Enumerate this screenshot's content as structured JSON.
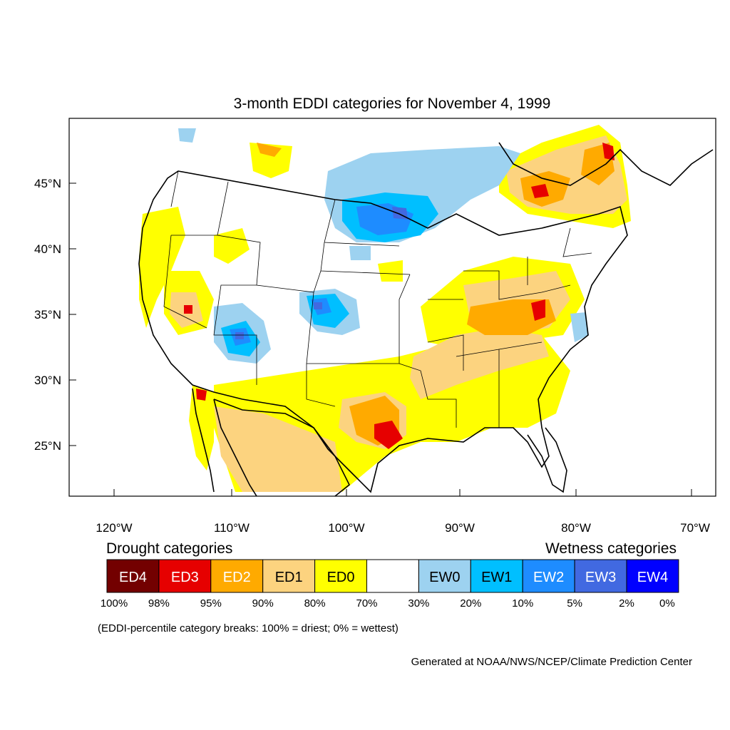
{
  "title": "3-month EDDI categories for November 4, 1999",
  "map": {
    "lat_labels": [
      "45°N",
      "40°N",
      "35°N",
      "30°N",
      "25°N"
    ],
    "lon_labels": [
      "120°W",
      "110°W",
      "100°W",
      "90°W",
      "80°W",
      "70°W"
    ]
  },
  "legend": {
    "drought_title": "Drought categories",
    "wetness_title": "Wetness categories",
    "categories": [
      {
        "label": "ED4",
        "color": "#730000",
        "text_color": "#ffffff"
      },
      {
        "label": "ED3",
        "color": "#e60000",
        "text_color": "#ffffff"
      },
      {
        "label": "ED2",
        "color": "#ffaa00",
        "text_color": "#ffffff"
      },
      {
        "label": "ED1",
        "color": "#fcd37f",
        "text_color": "#000000"
      },
      {
        "label": "ED0",
        "color": "#ffff00",
        "text_color": "#000000"
      },
      {
        "label": "",
        "color": "#ffffff",
        "text_color": "#000000"
      },
      {
        "label": "EW0",
        "color": "#9dd2f0",
        "text_color": "#000000"
      },
      {
        "label": "EW1",
        "color": "#00bfff",
        "text_color": "#000000"
      },
      {
        "label": "EW2",
        "color": "#1e8cff",
        "text_color": "#ffffff"
      },
      {
        "label": "EW3",
        "color": "#4169e1",
        "text_color": "#ffffff"
      },
      {
        "label": "EW4",
        "color": "#0000ff",
        "text_color": "#ffffff"
      }
    ],
    "breaks": [
      "100%",
      "98%",
      "95%",
      "90%",
      "80%",
      "70%",
      "30%",
      "20%",
      "10%",
      "5%",
      "2%",
      "0%"
    ],
    "note": "(EDDI-percentile category breaks: 100% = driest; 0% = wettest)"
  },
  "credit": "Generated at NOAA/NWS/NCEP/Climate Prediction Center"
}
